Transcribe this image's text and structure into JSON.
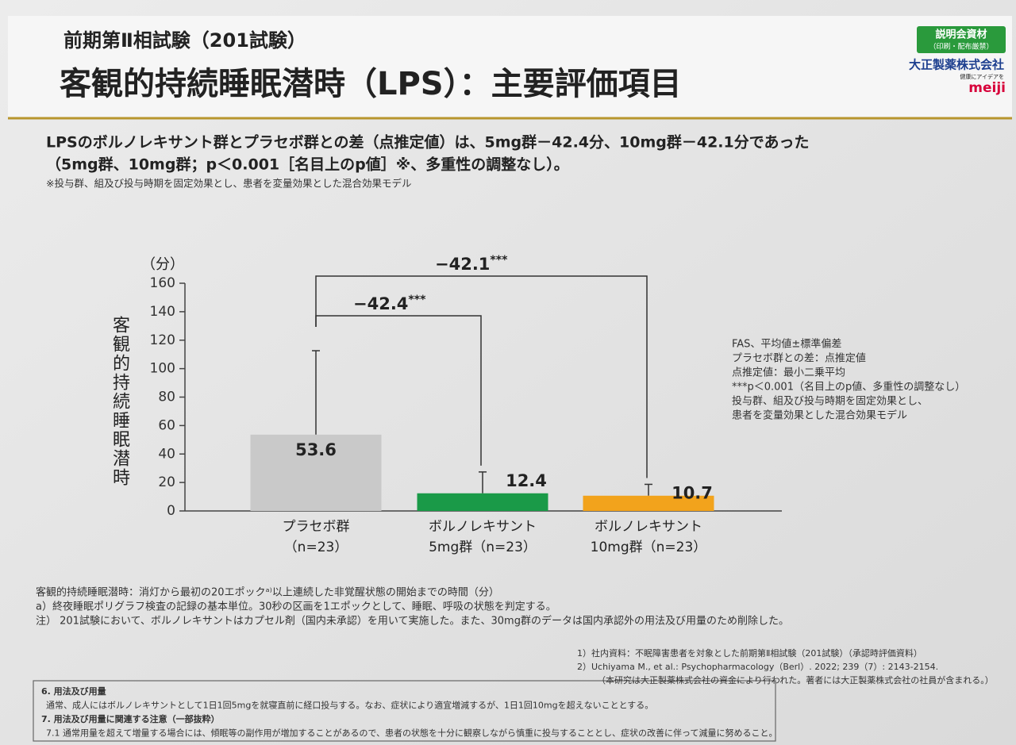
{
  "header": {
    "subtitle": "前期第Ⅱ相試験（201試験）",
    "title": "客観的持続睡眠潜時（LPS）：主要評価項目",
    "badge": "説明会資材",
    "badge_sub": "（印刷・配布厳禁）",
    "logo_company": "大正製薬株式会社",
    "logo_tagline": "健康にアイデアを",
    "logo_meiji": "meiji"
  },
  "summary": [
    "LPSのボルノレキサント群とプラセボ群との差（点推定値）は、5mg群－42.4分、10mg群－42.1分であった",
    "（5mg群、10mg群；p＜0.001［名目上のp値］※、多重性の調整なし）。"
  ],
  "summary_note": "※投与群、組及び投与時期を固定効果とし、患者を変量効果とした混合効果モデル",
  "chart_data": {
    "type": "bar",
    "y_unit": "（分）",
    "ylabel": "客観的持続睡眠潜時",
    "categories": [
      [
        "プラセボ群",
        "（n=23）"
      ],
      [
        "ボルノレキサント",
        "5mg群（n=23）"
      ],
      [
        "ボルノレキサント",
        "10mg群（n=23）"
      ]
    ],
    "values": [
      53.6,
      12.4,
      10.7
    ],
    "errors": [
      59,
      15,
      8
    ],
    "colors": [
      "#c9c9c9",
      "#1a9a48",
      "#f2a31c"
    ],
    "ylim": [
      0,
      160
    ],
    "yticks": [
      0,
      20,
      40,
      60,
      80,
      100,
      120,
      140,
      160
    ],
    "comparisons": [
      {
        "text": "−42.4",
        "stars": "***"
      },
      {
        "text": "−42.1",
        "stars": "***"
      }
    ]
  },
  "chart_notes": [
    "FAS、平均値±標準偏差",
    "プラセボ群との差：点推定値",
    "点推定値：最小二乗平均",
    "***p＜0.001（名目上のp値、多重性の調整なし）",
    "投与群、組及び投与時期を固定効果とし、",
    "患者を変量効果とした混合効果モデル"
  ],
  "footnotes": [
    "客観的持続睡眠潜時：消灯から最初の20エポックᵃ⁾以上連続した非覚醒状態の開始までの時間（分）",
    "a）終夜睡眠ポリグラフ検査の記録の基本単位。30秒の区画を1エポックとして、睡眠、呼吸の状態を判定する。",
    "注） 201試験において、ボルノレキサントはカプセル剤（国内未承認）を用いて実施した。また、30mg群のデータは国内承認外の用法及び用量のため削除した。"
  ],
  "references": [
    "1）社内資料：不眠障害患者を対象とした前期第Ⅱ相試験（201試験）（承認時評価資料）",
    "2）Uchiyama M., et al.: Psychopharmacology（Berl）. 2022; 239（7）: 2143-2154.",
    "（本研究は大正製薬株式会社の資金により行われた。著者には大正製薬株式会社の社員が含まれる。）"
  ],
  "box": [
    "6. 用法及び用量",
    "通常、成人にはボルノレキサントとして1日1回5mgを就寝直前に経口投与する。なお、症状により適宜増減するが、1日1回10mgを超えないこととする。",
    "7. 用法及び用量に関連する注意（一部抜粋）",
    "7.1 通常用量を超えて増量する場合には、傾眠等の副作用が増加することがあるので、患者の状態を十分に観察しながら慎重に投与することとし、症状の改善に伴って減量に努めること。"
  ]
}
